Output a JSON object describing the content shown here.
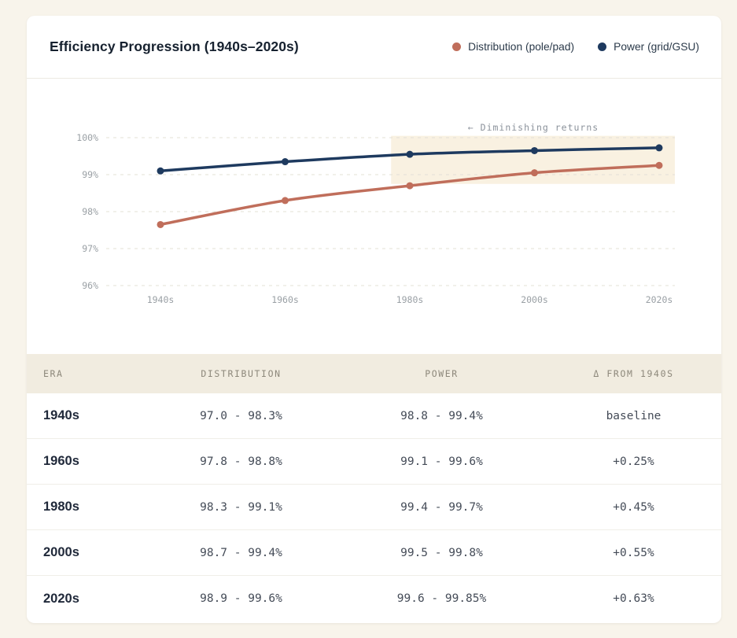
{
  "page": {
    "background": "#f8f4eb",
    "card_background": "#ffffff"
  },
  "header": {
    "title": "Efficiency Progression (1940s–2020s)",
    "legend": [
      {
        "label": "Distribution (pole/pad)",
        "color": "#c06e5b"
      },
      {
        "label": "Power (grid/GSU)",
        "color": "#1e3a5f"
      }
    ]
  },
  "chart_data": {
    "type": "line",
    "title": "Efficiency Progression (1940s–2020s)",
    "categories": [
      "1940s",
      "1960s",
      "1980s",
      "2000s",
      "2020s"
    ],
    "series": [
      {
        "name": "Distribution (pole/pad)",
        "color": "#c06e5b",
        "values": [
          97.65,
          98.3,
          98.7,
          99.05,
          99.25
        ]
      },
      {
        "name": "Power (grid/GSU)",
        "color": "#1e3a5f",
        "values": [
          99.1,
          99.35,
          99.55,
          99.65,
          99.725
        ]
      }
    ],
    "xlabel": "",
    "ylabel": "",
    "ylim": [
      95.6,
      100.4
    ],
    "yticks": [
      96,
      97,
      98,
      99,
      100
    ],
    "ytick_labels": [
      "96%",
      "97%",
      "98%",
      "99%",
      "100%"
    ],
    "grid": "horizontal-dashed",
    "gridline_color": "#e3e0d6",
    "axis_text_color": "#9aa0a5",
    "legend_position": "top-right",
    "annotation": {
      "text": "← Diminishing returns",
      "color": "#8b929b"
    },
    "highlight_band": {
      "color": "#f9f1e1",
      "y_min": 98.75,
      "y_max": 100.05,
      "x_start_index": 1.85,
      "note": "diminishing returns region from ~1980s to right edge"
    }
  },
  "table": {
    "columns": [
      "ERA",
      "DISTRIBUTION",
      "POWER",
      "Δ FROM 1940S"
    ],
    "rows": [
      {
        "era": "1940s",
        "distribution": "97.0 - 98.3%",
        "power": "98.8 - 99.4%",
        "delta": "baseline"
      },
      {
        "era": "1960s",
        "distribution": "97.8 - 98.8%",
        "power": "99.1 - 99.6%",
        "delta": "+0.25%"
      },
      {
        "era": "1980s",
        "distribution": "98.3 - 99.1%",
        "power": "99.4 - 99.7%",
        "delta": "+0.45%"
      },
      {
        "era": "2000s",
        "distribution": "98.7 - 99.4%",
        "power": "99.5 - 99.8%",
        "delta": "+0.55%"
      },
      {
        "era": "2020s",
        "distribution": "98.9 - 99.6%",
        "power": "99.6 - 99.85%",
        "delta": "+0.63%"
      }
    ]
  }
}
